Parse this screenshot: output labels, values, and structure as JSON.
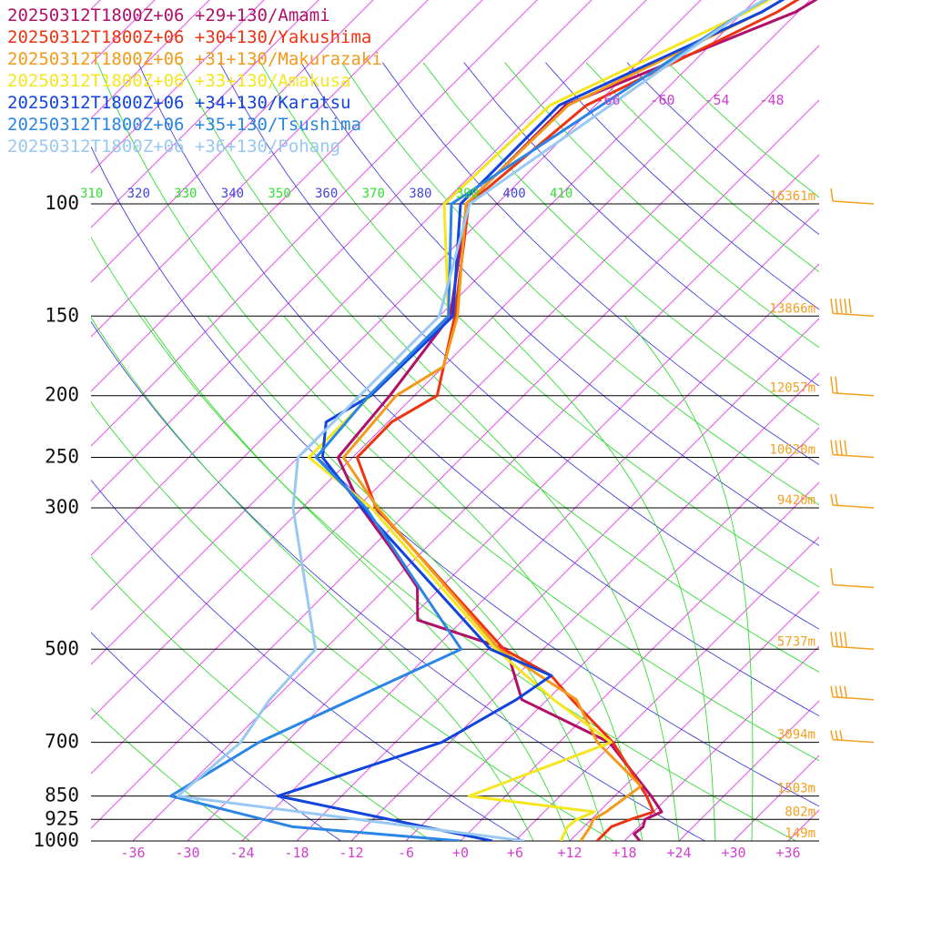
{
  "chart_data": {
    "type": "line",
    "title": "",
    "xlabel": "",
    "ylabel": "",
    "x_scale": "skewed temperature (degC)",
    "y_scale": "log pressure (hPa)",
    "xlim": [
      -40,
      40
    ],
    "ylim": [
      1000,
      100
    ],
    "grid": true,
    "legend_position": "top-left",
    "pressure_levels": [
      {
        "label": "100",
        "p": 100,
        "height": "16361m"
      },
      {
        "label": "150",
        "p": 150,
        "height": "13866m"
      },
      {
        "label": "200",
        "p": 200,
        "height": "12057m"
      },
      {
        "label": "250",
        "p": 250,
        "height": "10620m"
      },
      {
        "label": "300",
        "p": 300,
        "height": "9420m"
      },
      {
        "label": "500",
        "p": 500,
        "height": "5737m"
      },
      {
        "label": "700",
        "p": 700,
        "height": "3094m"
      },
      {
        "label": "850",
        "p": 850,
        "height": "1503m"
      },
      {
        "label": "925",
        "p": 925,
        "height": "802m"
      },
      {
        "label": "1000",
        "p": 1000,
        "height": "149m"
      }
    ],
    "x_ticks": [
      {
        "label": "-36",
        "t": -36
      },
      {
        "label": "-30",
        "t": -30
      },
      {
        "label": "-24",
        "t": -24
      },
      {
        "label": "-18",
        "t": -18
      },
      {
        "label": "-12",
        "t": -12
      },
      {
        "label": "-6",
        "t": -6
      },
      {
        "label": "+0",
        "t": 0
      },
      {
        "label": "+6",
        "t": 6
      },
      {
        "label": "+12",
        "t": 12
      },
      {
        "label": "+18",
        "t": 18
      },
      {
        "label": "+24",
        "t": 24
      },
      {
        "label": "+30",
        "t": 30
      },
      {
        "label": "+36",
        "t": 36
      }
    ],
    "theta_labels": [
      {
        "label": "310",
        "color": "#33dd33"
      },
      {
        "label": "320",
        "color": "#4444dd"
      },
      {
        "label": "330",
        "color": "#33dd33"
      },
      {
        "label": "340",
        "color": "#4444dd"
      },
      {
        "label": "350",
        "color": "#33dd33"
      },
      {
        "label": "360",
        "color": "#4444dd"
      },
      {
        "label": "370",
        "color": "#33dd33"
      },
      {
        "label": "380",
        "color": "#4444dd"
      },
      {
        "label": "390",
        "color": "#33dd33"
      },
      {
        "label": "400",
        "color": "#4444dd"
      },
      {
        "label": "410",
        "color": "#33dd33"
      }
    ],
    "mixing_labels": [
      "-66",
      "-60",
      "-54",
      "-48"
    ],
    "series": [
      {
        "name": "20250312T1800Z+06 +29+130/Amami",
        "color": "#b0106a",
        "points": [
          {
            "p": 1000,
            "t": 19.7
          },
          {
            "p": 975,
            "t": 18.3
          },
          {
            "p": 950,
            "t": 18.5
          },
          {
            "p": 925,
            "t": 17.9
          },
          {
            "p": 900,
            "t": 18.9
          },
          {
            "p": 850,
            "t": 16.0
          },
          {
            "p": 700,
            "t": 5.5
          },
          {
            "p": 600,
            "t": -8.8
          },
          {
            "p": 500,
            "t": -16.0
          },
          {
            "p": 450,
            "t": -29.0
          },
          {
            "p": 400,
            "t": -32.6
          },
          {
            "p": 350,
            "t": -39.4
          },
          {
            "p": 300,
            "t": -47.5
          },
          {
            "p": 250,
            "t": -55.6
          },
          {
            "p": 200,
            "t": -56.7
          },
          {
            "p": 150,
            "t": -58.8
          },
          {
            "p": 100,
            "t": -69.3
          },
          {
            "p": 80,
            "t": -69.3
          },
          {
            "p": 70,
            "t": -69.3
          },
          {
            "p": 60,
            "t": -62.5
          },
          {
            "p": 50,
            "t": -54.3
          },
          {
            "p": 30,
            "t": -44.0
          }
        ]
      },
      {
        "name": "20250312T1800Z+06 +30+130/Yakushima",
        "color": "#ee3311",
        "points": [
          {
            "p": 1000,
            "t": 15.0
          },
          {
            "p": 950,
            "t": 15.0
          },
          {
            "p": 925,
            "t": 16.3
          },
          {
            "p": 900,
            "t": 18.0
          },
          {
            "p": 850,
            "t": 15.5
          },
          {
            "p": 700,
            "t": 5.9
          },
          {
            "p": 600,
            "t": -3.3
          },
          {
            "p": 550,
            "t": -8.2
          },
          {
            "p": 500,
            "t": -16.3
          },
          {
            "p": 300,
            "t": -45.9
          },
          {
            "p": 250,
            "t": -53.5
          },
          {
            "p": 220,
            "t": -53.6
          },
          {
            "p": 200,
            "t": -51.5
          },
          {
            "p": 150,
            "t": -58.3
          },
          {
            "p": 100,
            "t": -69.1
          },
          {
            "p": 70,
            "t": -67.0
          },
          {
            "p": 50,
            "t": -56.3
          },
          {
            "p": 30,
            "t": -46.0
          }
        ]
      },
      {
        "name": "20250312T1800Z+06 +31+130/Makurazaki",
        "color": "#f39a1a",
        "points": [
          {
            "p": 1000,
            "t": 13.2
          },
          {
            "p": 950,
            "t": 12.7
          },
          {
            "p": 925,
            "t": 12.2
          },
          {
            "p": 900,
            "t": 12.8
          },
          {
            "p": 820,
            "t": 13.8
          },
          {
            "p": 700,
            "t": 4.2
          },
          {
            "p": 600,
            "t": -2.8
          },
          {
            "p": 500,
            "t": -16.8
          },
          {
            "p": 300,
            "t": -45.7
          },
          {
            "p": 250,
            "t": -55.0
          },
          {
            "p": 200,
            "t": -56.0
          },
          {
            "p": 180,
            "t": -54.0
          },
          {
            "p": 150,
            "t": -58.0
          },
          {
            "p": 100,
            "t": -69.4
          },
          {
            "p": 70,
            "t": -69.0
          },
          {
            "p": 50,
            "t": -58.0
          },
          {
            "p": 30,
            "t": -47.0
          }
        ]
      },
      {
        "name": "20250312T1800Z+06 +33+130/Amakusa",
        "color": "#f5e620",
        "points": [
          {
            "p": 1000,
            "t": 11.0
          },
          {
            "p": 950,
            "t": 10.2
          },
          {
            "p": 925,
            "t": 10.4
          },
          {
            "p": 900,
            "t": 11.5
          },
          {
            "p": 850,
            "t": -4.0
          },
          {
            "p": 700,
            "t": 5.7
          },
          {
            "p": 600,
            "t": -5.3
          },
          {
            "p": 500,
            "t": -17.2
          },
          {
            "p": 300,
            "t": -46.4
          },
          {
            "p": 250,
            "t": -58.8
          },
          {
            "p": 200,
            "t": -58.8
          },
          {
            "p": 150,
            "t": -59.0
          },
          {
            "p": 100,
            "t": -71.8
          },
          {
            "p": 70,
            "t": -71.0
          },
          {
            "p": 50,
            "t": -59.6
          },
          {
            "p": 30,
            "t": -48.0
          }
        ]
      },
      {
        "name": "20250312T1800Z+06 +34+130/Karatsu",
        "color": "#1144dd",
        "points": [
          {
            "p": 1000,
            "t": 3.5
          },
          {
            "p": 850,
            "t": -25.0
          },
          {
            "p": 700,
            "t": -12.9
          },
          {
            "p": 600,
            "t": -9.4
          },
          {
            "p": 550,
            "t": -8.2
          },
          {
            "p": 500,
            "t": -17.8
          },
          {
            "p": 300,
            "t": -47.4
          },
          {
            "p": 250,
            "t": -57.3
          },
          {
            "p": 220,
            "t": -60.8
          },
          {
            "p": 200,
            "t": -58.8
          },
          {
            "p": 150,
            "t": -58.5
          },
          {
            "p": 100,
            "t": -70.0
          },
          {
            "p": 70,
            "t": -70.0
          },
          {
            "p": 50,
            "t": -58.0
          },
          {
            "p": 30,
            "t": -47.0
          }
        ]
      },
      {
        "name": "20250312T1800Z+06 +35+130/Tsushima",
        "color": "#2a85e5",
        "points": [
          {
            "p": 1000,
            "t": 0.0
          },
          {
            "p": 950,
            "t": -20.0
          },
          {
            "p": 850,
            "t": -36.8
          },
          {
            "p": 700,
            "t": -33.0
          },
          {
            "p": 500,
            "t": -21.0
          },
          {
            "p": 300,
            "t": -47.0
          },
          {
            "p": 250,
            "t": -58.0
          },
          {
            "p": 200,
            "t": -59.0
          },
          {
            "p": 150,
            "t": -59.0
          },
          {
            "p": 100,
            "t": -71.0
          },
          {
            "p": 50,
            "t": -60.0
          },
          {
            "p": 30,
            "t": -48.0
          }
        ]
      },
      {
        "name": "20250312T1800Z+06 +36+130/Pohang",
        "color": "#99c8f2",
        "points": [
          {
            "p": 1000,
            "t": 7.0
          },
          {
            "p": 850,
            "t": -36.0
          },
          {
            "p": 700,
            "t": -35.0
          },
          {
            "p": 600,
            "t": -36.5
          },
          {
            "p": 500,
            "t": -37.0
          },
          {
            "p": 300,
            "t": -55.0
          },
          {
            "p": 250,
            "t": -60.0
          },
          {
            "p": 200,
            "t": -60.0
          },
          {
            "p": 150,
            "t": -60.0
          },
          {
            "p": 100,
            "t": -69.0
          },
          {
            "p": 50,
            "t": -60.0
          },
          {
            "p": 30,
            "t": -49.0
          }
        ]
      }
    ]
  },
  "colors": {
    "isobar": "#000000",
    "isotherm": "#dd33dd",
    "theta_blue": "#4444dd",
    "theta_green": "#33dd33",
    "moist_adiabat": "#33dd33",
    "height_text": "#f4a020",
    "wind_barb": "#f4a020"
  }
}
